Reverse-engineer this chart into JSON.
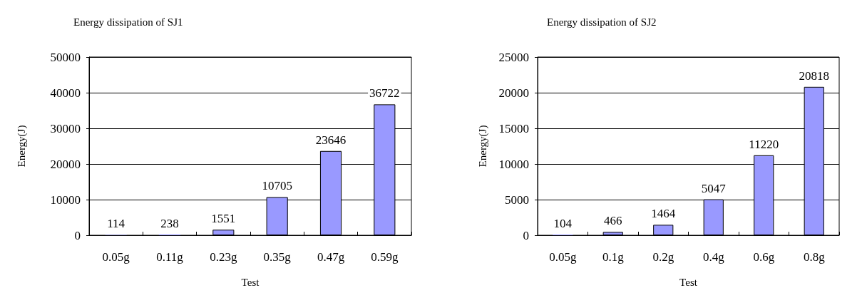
{
  "chart_data": [
    {
      "type": "bar",
      "title": "Energy dissipation of SJ1",
      "xlabel": "Test",
      "ylabel": "Energy(J)",
      "categories": [
        "0.05g",
        "0.11g",
        "0.23g",
        "0.35g",
        "0.47g",
        "0.59g"
      ],
      "values": [
        114,
        238,
        1551,
        10705,
        23646,
        36722
      ],
      "color": "#9999ff",
      "ylim": [
        0,
        50000
      ],
      "yticks": [
        0,
        10000,
        20000,
        30000,
        40000,
        50000
      ],
      "grid": "y",
      "data_labels": true
    },
    {
      "type": "bar",
      "title": "Energy dissipation of SJ2",
      "xlabel": "Test",
      "ylabel": "Energy(J)",
      "categories": [
        "0.05g",
        "0.1g",
        "0.2g",
        "0.4g",
        "0.6g",
        "0.8g"
      ],
      "values": [
        104,
        466,
        1464,
        5047,
        11220,
        20818
      ],
      "color": "#9999ff",
      "ylim": [
        0,
        25000
      ],
      "yticks": [
        0,
        5000,
        10000,
        15000,
        20000,
        25000
      ],
      "grid": "y",
      "data_labels": true
    }
  ]
}
